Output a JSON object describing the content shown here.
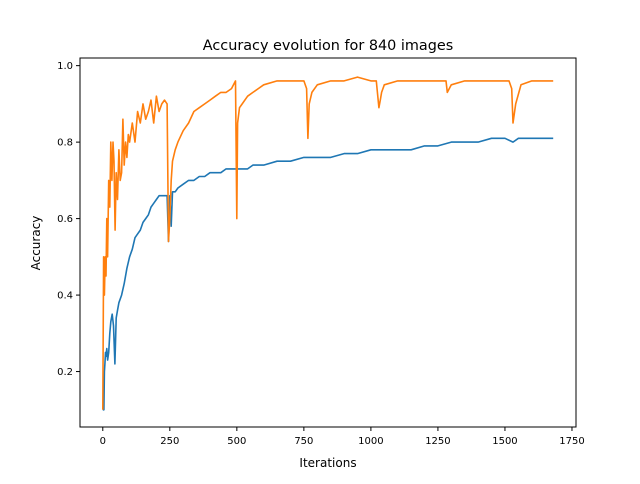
{
  "chart_data": {
    "type": "line",
    "title": "Accuracy evolution for 840 images",
    "xlabel": "Iterations",
    "ylabel": "Accuracy",
    "xlim": [
      -85,
      1765
    ],
    "ylim": [
      0.055,
      1.02
    ],
    "xticks": [
      0,
      250,
      500,
      750,
      1000,
      1250,
      1500,
      1750
    ],
    "yticks": [
      0.2,
      0.4,
      0.6,
      0.8,
      1.0
    ],
    "ytick_labels": [
      "0.2",
      "0.4",
      "0.6",
      "0.8",
      "1.0"
    ],
    "grid": false,
    "legend": "none",
    "series": [
      {
        "color": "#1f77b4",
        "x": [
          0,
          2,
          4,
          6,
          8,
          10,
          12,
          15,
          18,
          22,
          26,
          30,
          35,
          40,
          45,
          50,
          55,
          60,
          70,
          80,
          90,
          100,
          110,
          120,
          130,
          140,
          150,
          160,
          170,
          180,
          190,
          200,
          210,
          220,
          230,
          240,
          245,
          250,
          255,
          260,
          270,
          280,
          300,
          320,
          340,
          360,
          380,
          400,
          420,
          440,
          460,
          480,
          500,
          520,
          540,
          560,
          580,
          600,
          650,
          700,
          750,
          800,
          850,
          900,
          950,
          1000,
          1050,
          1100,
          1150,
          1200,
          1250,
          1300,
          1350,
          1400,
          1450,
          1500,
          1530,
          1550,
          1600,
          1650,
          1680
        ],
        "y": [
          0.1,
          0.1,
          0.1,
          0.2,
          0.22,
          0.25,
          0.24,
          0.26,
          0.23,
          0.25,
          0.3,
          0.33,
          0.35,
          0.32,
          0.22,
          0.34,
          0.36,
          0.38,
          0.4,
          0.43,
          0.47,
          0.5,
          0.52,
          0.55,
          0.56,
          0.57,
          0.59,
          0.6,
          0.61,
          0.63,
          0.64,
          0.65,
          0.66,
          0.66,
          0.66,
          0.66,
          0.54,
          0.66,
          0.58,
          0.67,
          0.67,
          0.68,
          0.69,
          0.7,
          0.7,
          0.71,
          0.71,
          0.72,
          0.72,
          0.72,
          0.73,
          0.73,
          0.73,
          0.73,
          0.73,
          0.74,
          0.74,
          0.74,
          0.75,
          0.75,
          0.76,
          0.76,
          0.76,
          0.77,
          0.77,
          0.78,
          0.78,
          0.78,
          0.78,
          0.79,
          0.79,
          0.8,
          0.8,
          0.8,
          0.81,
          0.81,
          0.8,
          0.81,
          0.81,
          0.81,
          0.81
        ]
      },
      {
        "color": "#ff7f0e",
        "x": [
          0,
          3,
          6,
          9,
          12,
          15,
          18,
          22,
          26,
          30,
          34,
          38,
          42,
          46,
          50,
          55,
          60,
          65,
          70,
          75,
          80,
          85,
          90,
          95,
          100,
          110,
          120,
          130,
          140,
          150,
          160,
          170,
          180,
          190,
          200,
          210,
          220,
          230,
          240,
          245,
          250,
          255,
          260,
          270,
          280,
          300,
          320,
          340,
          360,
          380,
          400,
          420,
          440,
          460,
          480,
          495,
          500,
          503,
          510,
          520,
          540,
          560,
          580,
          600,
          650,
          700,
          750,
          760,
          765,
          770,
          780,
          800,
          850,
          900,
          950,
          1000,
          1020,
          1030,
          1035,
          1040,
          1050,
          1100,
          1150,
          1200,
          1250,
          1280,
          1285,
          1300,
          1350,
          1400,
          1450,
          1500,
          1515,
          1525,
          1530,
          1540,
          1560,
          1600,
          1650,
          1680
        ],
        "y": [
          0.1,
          0.5,
          0.4,
          0.5,
          0.45,
          0.6,
          0.5,
          0.7,
          0.63,
          0.8,
          0.7,
          0.8,
          0.75,
          0.57,
          0.72,
          0.65,
          0.78,
          0.7,
          0.72,
          0.86,
          0.74,
          0.8,
          0.76,
          0.82,
          0.8,
          0.85,
          0.8,
          0.88,
          0.85,
          0.9,
          0.86,
          0.88,
          0.91,
          0.85,
          0.92,
          0.88,
          0.9,
          0.91,
          0.9,
          0.54,
          0.6,
          0.7,
          0.75,
          0.78,
          0.8,
          0.83,
          0.85,
          0.88,
          0.89,
          0.9,
          0.91,
          0.92,
          0.93,
          0.93,
          0.94,
          0.96,
          0.6,
          0.85,
          0.89,
          0.9,
          0.92,
          0.93,
          0.94,
          0.95,
          0.96,
          0.96,
          0.96,
          0.94,
          0.81,
          0.9,
          0.93,
          0.95,
          0.96,
          0.96,
          0.97,
          0.96,
          0.96,
          0.89,
          0.91,
          0.93,
          0.95,
          0.96,
          0.96,
          0.96,
          0.96,
          0.96,
          0.93,
          0.95,
          0.96,
          0.96,
          0.96,
          0.96,
          0.96,
          0.94,
          0.85,
          0.9,
          0.95,
          0.96,
          0.96,
          0.96
        ]
      }
    ]
  }
}
